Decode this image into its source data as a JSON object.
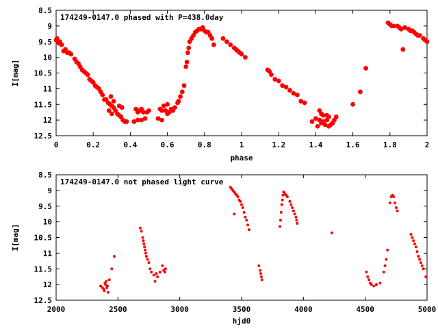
{
  "chart_data": [
    {
      "type": "scatter",
      "title": "174249-0147.0 phased with P=438.0day",
      "xlabel": "phase",
      "ylabel": "I[mag]",
      "xlim": [
        0,
        2
      ],
      "ylim": [
        8.5,
        12.5
      ],
      "y_inverted": true,
      "xticks": [
        "0",
        "0.2",
        "0.4",
        "0.6",
        "0.8",
        "1",
        "1.2",
        "1.4",
        "1.6",
        "1.8",
        "2"
      ],
      "yticks": [
        "8.5",
        "9",
        "9.5",
        "10",
        "10.5",
        "11",
        "11.5",
        "12",
        "12.5"
      ],
      "marker_color": "#ff0000",
      "marker": "filled-circle-large",
      "grid": false,
      "points": [
        [
          0.0,
          9.45
        ],
        [
          0.005,
          9.4
        ],
        [
          0.01,
          9.5
        ],
        [
          0.015,
          9.55
        ],
        [
          0.02,
          9.5
        ],
        [
          0.03,
          9.6
        ],
        [
          0.04,
          9.8
        ],
        [
          0.05,
          9.75
        ],
        [
          0.06,
          9.85
        ],
        [
          0.07,
          9.85
        ],
        [
          0.08,
          9.9
        ],
        [
          0.1,
          10.05
        ],
        [
          0.11,
          10.15
        ],
        [
          0.12,
          10.2
        ],
        [
          0.13,
          10.3
        ],
        [
          0.14,
          10.4
        ],
        [
          0.15,
          10.45
        ],
        [
          0.16,
          10.5
        ],
        [
          0.17,
          10.55
        ],
        [
          0.18,
          10.7
        ],
        [
          0.19,
          10.75
        ],
        [
          0.2,
          10.8
        ],
        [
          0.21,
          10.9
        ],
        [
          0.22,
          10.95
        ],
        [
          0.23,
          11.0
        ],
        [
          0.24,
          11.1
        ],
        [
          0.25,
          11.2
        ],
        [
          0.26,
          11.35
        ],
        [
          0.27,
          11.35
        ],
        [
          0.28,
          11.45
        ],
        [
          0.29,
          11.5
        ],
        [
          0.3,
          11.55
        ],
        [
          0.31,
          11.6
        ],
        [
          0.32,
          11.7
        ],
        [
          0.33,
          11.8
        ],
        [
          0.34,
          11.85
        ],
        [
          0.35,
          11.9
        ],
        [
          0.36,
          12.0
        ],
        [
          0.37,
          12.05
        ],
        [
          0.38,
          12.05
        ],
        [
          0.295,
          11.25
        ],
        [
          0.31,
          11.4
        ],
        [
          0.34,
          11.55
        ],
        [
          0.355,
          11.6
        ],
        [
          0.285,
          11.7
        ],
        [
          0.3,
          11.8
        ],
        [
          0.42,
          12.05
        ],
        [
          0.44,
          12.0
        ],
        [
          0.46,
          12.0
        ],
        [
          0.48,
          11.95
        ],
        [
          0.43,
          11.65
        ],
        [
          0.44,
          11.75
        ],
        [
          0.45,
          11.7
        ],
        [
          0.46,
          11.65
        ],
        [
          0.47,
          11.75
        ],
        [
          0.49,
          11.75
        ],
        [
          0.5,
          11.7
        ],
        [
          0.56,
          11.65
        ],
        [
          0.57,
          11.7
        ],
        [
          0.58,
          11.55
        ],
        [
          0.59,
          11.7
        ],
        [
          0.6,
          11.8
        ],
        [
          0.61,
          11.75
        ],
        [
          0.62,
          11.65
        ],
        [
          0.63,
          11.7
        ],
        [
          0.64,
          11.6
        ],
        [
          0.655,
          11.45
        ],
        [
          0.66,
          11.4
        ],
        [
          0.67,
          11.25
        ],
        [
          0.68,
          11.1
        ],
        [
          0.69,
          10.9
        ],
        [
          0.55,
          11.95
        ],
        [
          0.57,
          12.0
        ],
        [
          0.6,
          11.5
        ],
        [
          0.7,
          10.3
        ],
        [
          0.705,
          10.15
        ],
        [
          0.71,
          9.85
        ],
        [
          0.715,
          9.7
        ],
        [
          0.72,
          9.5
        ],
        [
          0.73,
          9.4
        ],
        [
          0.74,
          9.3
        ],
        [
          0.75,
          9.2
        ],
        [
          0.76,
          9.15
        ],
        [
          0.77,
          9.1
        ],
        [
          0.78,
          9.1
        ],
        [
          0.79,
          9.05
        ],
        [
          0.8,
          9.15
        ],
        [
          0.81,
          9.2
        ],
        [
          0.82,
          9.2
        ],
        [
          0.83,
          9.3
        ],
        [
          0.84,
          9.4
        ],
        [
          0.85,
          9.6
        ],
        [
          0.9,
          9.4
        ],
        [
          0.92,
          9.5
        ],
        [
          0.94,
          9.6
        ],
        [
          0.96,
          9.7
        ],
        [
          0.97,
          9.75
        ],
        [
          0.98,
          9.8
        ],
        [
          0.99,
          9.85
        ],
        [
          1.0,
          9.9
        ],
        [
          1.02,
          10.0
        ],
        [
          1.14,
          10.4
        ],
        [
          1.15,
          10.45
        ],
        [
          1.16,
          10.55
        ],
        [
          1.18,
          10.7
        ],
        [
          1.2,
          10.75
        ],
        [
          1.22,
          10.9
        ],
        [
          1.24,
          10.95
        ],
        [
          1.26,
          11.05
        ],
        [
          1.28,
          11.15
        ],
        [
          1.3,
          11.2
        ],
        [
          1.32,
          11.4
        ],
        [
          1.34,
          11.45
        ],
        [
          1.38,
          12.05
        ],
        [
          1.4,
          11.95
        ],
        [
          1.41,
          12.2
        ],
        [
          1.42,
          12.0
        ],
        [
          1.43,
          12.1
        ],
        [
          1.44,
          12.05
        ],
        [
          1.45,
          12.15
        ],
        [
          1.46,
          12.0
        ],
        [
          1.47,
          12.2
        ],
        [
          1.48,
          12.15
        ],
        [
          1.49,
          12.1
        ],
        [
          1.5,
          12.0
        ],
        [
          1.51,
          11.9
        ],
        [
          1.42,
          11.7
        ],
        [
          1.43,
          11.8
        ],
        [
          1.44,
          11.85
        ],
        [
          1.46,
          11.85
        ],
        [
          1.47,
          11.9
        ],
        [
          1.6,
          11.5
        ],
        [
          1.64,
          11.1
        ],
        [
          1.67,
          10.35
        ],
        [
          1.79,
          8.9
        ],
        [
          1.8,
          8.95
        ],
        [
          1.81,
          9.0
        ],
        [
          1.82,
          9.0
        ],
        [
          1.84,
          9.0
        ],
        [
          1.85,
          9.05
        ],
        [
          1.86,
          9.1
        ],
        [
          1.87,
          9.75
        ],
        [
          1.88,
          9.05
        ],
        [
          1.9,
          9.1
        ],
        [
          1.91,
          9.15
        ],
        [
          1.92,
          9.15
        ],
        [
          1.93,
          9.2
        ],
        [
          1.94,
          9.25
        ],
        [
          1.95,
          9.3
        ],
        [
          1.96,
          9.3
        ],
        [
          1.98,
          9.4
        ],
        [
          1.99,
          9.45
        ],
        [
          2.0,
          9.5
        ]
      ]
    },
    {
      "type": "scatter",
      "title": "174249-0147.0 not phased light curve",
      "xlabel": "hjd0",
      "ylabel": "I[mag]",
      "xlim": [
        2000,
        5000
      ],
      "ylim": [
        8.5,
        12.5
      ],
      "y_inverted": true,
      "xticks": [
        "2000",
        "2500",
        "3000",
        "3500",
        "4000",
        "4500",
        "5000"
      ],
      "yticks": [
        "8.5",
        "9",
        "9.5",
        "10",
        "10.5",
        "11",
        "11.5",
        "12",
        "12.5"
      ],
      "marker_color": "#ff0000",
      "marker": "filled-circle-small",
      "grid": false,
      "points": [
        [
          2360,
          12.05
        ],
        [
          2375,
          12.1
        ],
        [
          2385,
          12.15
        ],
        [
          2390,
          12.2
        ],
        [
          2395,
          11.95
        ],
        [
          2400,
          12.0
        ],
        [
          2405,
          11.9
        ],
        [
          2410,
          12.1
        ],
        [
          2415,
          12.05
        ],
        [
          2420,
          12.25
        ],
        [
          2430,
          11.85
        ],
        [
          2450,
          11.5
        ],
        [
          2470,
          11.1
        ],
        [
          2680,
          10.2
        ],
        [
          2690,
          10.3
        ],
        [
          2700,
          10.5
        ],
        [
          2705,
          10.6
        ],
        [
          2710,
          10.7
        ],
        [
          2715,
          10.8
        ],
        [
          2720,
          10.9
        ],
        [
          2725,
          11.0
        ],
        [
          2730,
          11.1
        ],
        [
          2740,
          11.2
        ],
        [
          2750,
          11.3
        ],
        [
          2760,
          11.5
        ],
        [
          2770,
          11.6
        ],
        [
          2790,
          11.7
        ],
        [
          2800,
          11.9
        ],
        [
          2810,
          11.65
        ],
        [
          2820,
          11.75
        ],
        [
          2840,
          11.6
        ],
        [
          2860,
          11.4
        ],
        [
          2870,
          11.55
        ],
        [
          2880,
          11.6
        ],
        [
          2885,
          11.5
        ],
        [
          3410,
          8.9
        ],
        [
          3420,
          8.95
        ],
        [
          3430,
          9.0
        ],
        [
          3440,
          9.05
        ],
        [
          3450,
          9.1
        ],
        [
          3460,
          9.15
        ],
        [
          3470,
          9.2
        ],
        [
          3480,
          9.3
        ],
        [
          3490,
          9.35
        ],
        [
          3500,
          9.45
        ],
        [
          3510,
          9.55
        ],
        [
          3520,
          9.7
        ],
        [
          3530,
          9.85
        ],
        [
          3540,
          9.95
        ],
        [
          3550,
          10.1
        ],
        [
          3560,
          10.25
        ],
        [
          3440,
          9.75
        ],
        [
          3640,
          11.4
        ],
        [
          3650,
          11.55
        ],
        [
          3655,
          11.65
        ],
        [
          3660,
          11.75
        ],
        [
          3665,
          11.85
        ],
        [
          3810,
          10.15
        ],
        [
          3815,
          9.95
        ],
        [
          3820,
          9.7
        ],
        [
          3825,
          9.45
        ],
        [
          3830,
          9.3
        ],
        [
          3835,
          9.15
        ],
        [
          3840,
          9.05
        ],
        [
          3850,
          9.1
        ],
        [
          3860,
          9.15
        ],
        [
          3870,
          9.2
        ],
        [
          3890,
          9.35
        ],
        [
          3900,
          9.45
        ],
        [
          3910,
          9.55
        ],
        [
          3920,
          9.65
        ],
        [
          3930,
          9.75
        ],
        [
          3940,
          9.85
        ],
        [
          3945,
          9.95
        ],
        [
          3950,
          10.05
        ],
        [
          4230,
          10.35
        ],
        [
          4510,
          11.6
        ],
        [
          4520,
          11.75
        ],
        [
          4530,
          11.85
        ],
        [
          4540,
          11.95
        ],
        [
          4550,
          12.0
        ],
        [
          4570,
          12.05
        ],
        [
          4590,
          12.0
        ],
        [
          4620,
          11.95
        ],
        [
          4650,
          11.6
        ],
        [
          4660,
          11.4
        ],
        [
          4670,
          11.2
        ],
        [
          4680,
          10.9
        ],
        [
          4700,
          9.4
        ],
        [
          4710,
          9.2
        ],
        [
          4720,
          9.15
        ],
        [
          4730,
          9.2
        ],
        [
          4740,
          9.4
        ],
        [
          4750,
          9.55
        ],
        [
          4760,
          9.65
        ],
        [
          4870,
          10.4
        ],
        [
          4880,
          10.5
        ],
        [
          4890,
          10.6
        ],
        [
          4900,
          10.7
        ],
        [
          4910,
          10.8
        ],
        [
          4920,
          10.95
        ],
        [
          4930,
          11.1
        ],
        [
          4940,
          11.2
        ],
        [
          4950,
          11.3
        ],
        [
          4960,
          11.4
        ],
        [
          4970,
          11.5
        ],
        [
          4990,
          11.75
        ]
      ]
    }
  ]
}
